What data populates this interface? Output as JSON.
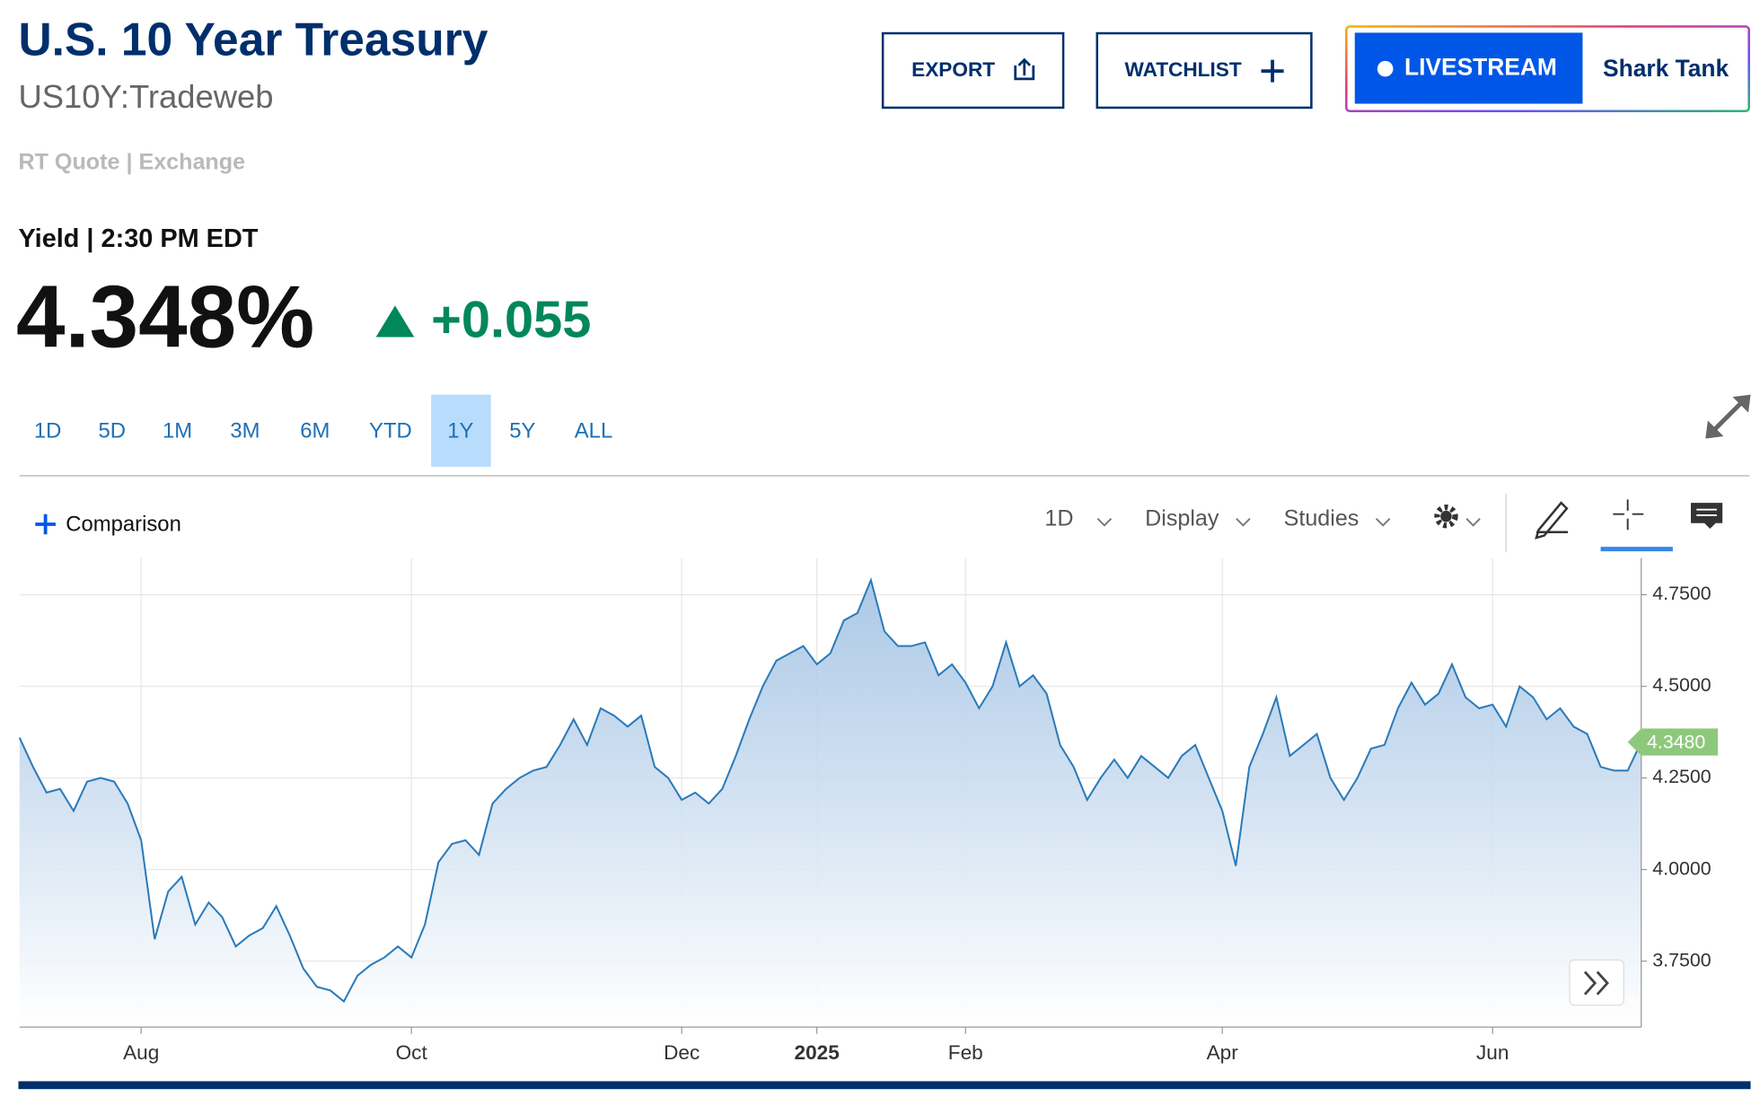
{
  "header": {
    "title": "U.S. 10 Year Treasury",
    "symbol": "US10Y:Tradeweb",
    "quote_source": "RT Quote | Exchange"
  },
  "buttons": [
    "EXPORT",
    "WATCHLIST"
  ],
  "livestream": {
    "label": "LIVESTREAM",
    "show": "Shark Tank"
  },
  "quote": {
    "label": "Yield | 2:30 PM EDT",
    "price": "4.348%",
    "change": "+0.055"
  },
  "range_tabs": [
    "1D",
    "5D",
    "1M",
    "3M",
    "6M",
    "YTD",
    "1Y",
    "5Y",
    "ALL"
  ],
  "selected_range_index": 6,
  "toolbar": {
    "comparison": "Comparison",
    "interval": "1D",
    "display": "Display",
    "studies": "Studies"
  },
  "chart_data": {
    "type": "area",
    "categories": [
      null,
      null,
      null,
      null,
      null,
      null,
      null,
      null,
      null,
      "Aug",
      null,
      null,
      null,
      null,
      null,
      null,
      null,
      null,
      null,
      null,
      null,
      null,
      null,
      null,
      null,
      null,
      null,
      null,
      null,
      "Oct",
      null,
      null,
      null,
      null,
      null,
      null,
      null,
      null,
      null,
      null,
      null,
      null,
      null,
      null,
      null,
      null,
      null,
      null,
      null,
      "Dec",
      null,
      null,
      null,
      null,
      null,
      null,
      null,
      null,
      null,
      "2025",
      null,
      null,
      null,
      null,
      null,
      null,
      null,
      null,
      null,
      null,
      "Feb",
      null,
      null,
      null,
      null,
      null,
      null,
      null,
      null,
      null,
      null,
      null,
      null,
      null,
      null,
      null,
      null,
      null,
      null,
      "Apr",
      null,
      null,
      null,
      null,
      null,
      null,
      null,
      null,
      null,
      null,
      null,
      null,
      null,
      null,
      null,
      null,
      null,
      null,
      null,
      "Jun",
      null,
      null,
      null,
      null,
      null,
      null,
      null,
      null,
      null,
      null,
      null
    ],
    "values": [
      4.36,
      4.28,
      4.21,
      4.22,
      4.16,
      4.24,
      4.25,
      4.24,
      4.18,
      4.08,
      3.81,
      3.94,
      3.98,
      3.85,
      3.91,
      3.87,
      3.79,
      3.82,
      3.84,
      3.9,
      3.82,
      3.73,
      3.68,
      3.67,
      3.64,
      3.71,
      3.74,
      3.76,
      3.79,
      3.76,
      3.85,
      4.02,
      4.07,
      4.08,
      4.04,
      4.18,
      4.22,
      4.25,
      4.27,
      4.28,
      4.34,
      4.41,
      4.34,
      4.44,
      4.42,
      4.39,
      4.42,
      4.28,
      4.25,
      4.19,
      4.21,
      4.18,
      4.22,
      4.31,
      4.41,
      4.5,
      4.57,
      4.59,
      4.61,
      4.56,
      4.59,
      4.68,
      4.7,
      4.79,
      4.65,
      4.61,
      4.61,
      4.62,
      4.53,
      4.56,
      4.51,
      4.44,
      4.5,
      4.62,
      4.5,
      4.53,
      4.48,
      4.34,
      4.28,
      4.19,
      4.25,
      4.3,
      4.25,
      4.31,
      4.28,
      4.25,
      4.31,
      4.34,
      4.25,
      4.16,
      4.01,
      4.28,
      4.37,
      4.47,
      4.31,
      4.34,
      4.37,
      4.25,
      4.19,
      4.25,
      4.33,
      4.34,
      4.44,
      4.51,
      4.45,
      4.48,
      4.56,
      4.47,
      4.44,
      4.45,
      4.39,
      4.5,
      4.47,
      4.41,
      4.44,
      4.39,
      4.37,
      4.28,
      4.27,
      4.27,
      4.348
    ],
    "color": "#2a7ab8",
    "fill_color": "#9dbfe2",
    "last_price": {
      "value": 4.348,
      "label": "4.3480"
    },
    "last_price_color": "#8dc87c",
    "ylim": [
      3.57,
      4.85
    ],
    "yticks": [
      {
        "value": 3.75,
        "label": "3.7500"
      },
      {
        "value": 4.0,
        "label": "4.0000"
      },
      {
        "value": 4.25,
        "label": "4.2500"
      },
      {
        "value": 4.5,
        "label": "4.5000"
      },
      {
        "value": 4.75,
        "label": "4.7500"
      }
    ],
    "grid": true
  }
}
